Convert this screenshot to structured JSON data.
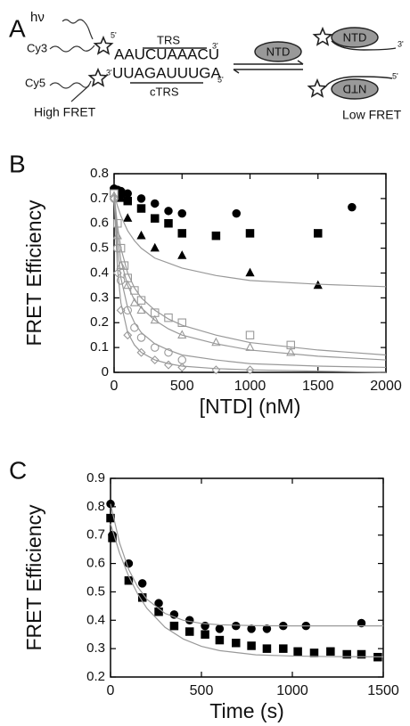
{
  "diagram": {
    "panel": "A",
    "hv": "hν",
    "cy3": "Cy3",
    "cy3_end": "5'",
    "top_end": "3'",
    "trs": "TRS",
    "top_strand": "AAUCUAAACU",
    "bottom_strand": "UUAGAUUUGA",
    "bottom_end": "5'",
    "ctrs": "cTRS",
    "cy5": "Cy5",
    "cy5_end": "3'",
    "high": "High FRET",
    "ntd_free": "NTD",
    "ntd_top": "NTD",
    "ntd_top_end": "3'",
    "ntd_bottom": "NTD",
    "ntd_bottom_end": "5'",
    "low": "Low FRET"
  },
  "chart_data": [
    {
      "type": "scatter",
      "panel": "B",
      "xlabel": "[NTD] (nM)",
      "ylabel": "FRET Efficiency",
      "xlim": [
        0,
        2000
      ],
      "ylim": [
        0,
        0.8
      ],
      "xticks": [
        0,
        500,
        1000,
        1500,
        2000
      ],
      "yticks": [
        0,
        0.1,
        0.2,
        0.3,
        0.4,
        0.5,
        0.6,
        0.7,
        0.8
      ],
      "series": [
        {
          "marker": "circle",
          "filled": true,
          "color": "#000000",
          "x": [
            0,
            25,
            50,
            100,
            200,
            300,
            400,
            500,
            900,
            1750
          ],
          "values": [
            0.74,
            0.735,
            0.73,
            0.72,
            0.7,
            0.68,
            0.65,
            0.64,
            0.64,
            0.665
          ]
        },
        {
          "marker": "square",
          "filled": true,
          "color": "#000000",
          "x": [
            0,
            50,
            100,
            200,
            300,
            400,
            500,
            750,
            1000,
            1500
          ],
          "values": [
            0.73,
            0.72,
            0.69,
            0.66,
            0.62,
            0.6,
            0.56,
            0.55,
            0.56,
            0.56
          ]
        },
        {
          "marker": "triangle",
          "filled": true,
          "color": "#000000",
          "x": [
            0,
            50,
            100,
            200,
            300,
            500,
            1000,
            1500
          ],
          "values": [
            0.72,
            0.7,
            0.62,
            0.55,
            0.5,
            0.47,
            0.4,
            0.35
          ]
        },
        {
          "marker": "square",
          "filled": false,
          "color": "#999999",
          "x": [
            0,
            25,
            50,
            75,
            100,
            150,
            200,
            300,
            400,
            500,
            1000,
            1300
          ],
          "values": [
            0.72,
            0.6,
            0.5,
            0.43,
            0.38,
            0.33,
            0.29,
            0.24,
            0.22,
            0.2,
            0.15,
            0.11
          ]
        },
        {
          "marker": "triangle",
          "filled": false,
          "color": "#999999",
          "x": [
            0,
            25,
            50,
            100,
            150,
            200,
            300,
            500,
            750,
            1000,
            1300
          ],
          "values": [
            0.71,
            0.55,
            0.43,
            0.35,
            0.28,
            0.25,
            0.21,
            0.15,
            0.12,
            0.1,
            0.08
          ]
        },
        {
          "marker": "circle",
          "filled": false,
          "color": "#999999",
          "x": [
            0,
            25,
            50,
            100,
            150,
            200,
            300,
            400,
            500
          ],
          "values": [
            0.7,
            0.5,
            0.37,
            0.25,
            0.18,
            0.14,
            0.1,
            0.08,
            0.05
          ]
        },
        {
          "marker": "diamond",
          "filled": false,
          "color": "#999999",
          "x": [
            0,
            25,
            50,
            100,
            200,
            300,
            400,
            500,
            750,
            1000
          ],
          "values": [
            0.7,
            0.4,
            0.25,
            0.15,
            0.08,
            0.05,
            0.03,
            0.02,
            0.01,
            0.01
          ]
        },
        {
          "marker": "line",
          "color": "#999999",
          "x": [
            0,
            25,
            50,
            100,
            150,
            200,
            300,
            400,
            500,
            750,
            1000,
            1500,
            2000
          ],
          "values": [
            0.72,
            0.67,
            0.63,
            0.57,
            0.53,
            0.5,
            0.46,
            0.44,
            0.42,
            0.39,
            0.37,
            0.355,
            0.345
          ]
        },
        {
          "marker": "line",
          "color": "#999999",
          "x": [
            0,
            25,
            50,
            100,
            150,
            200,
            300,
            400,
            500,
            750,
            1000,
            1500,
            2000
          ],
          "values": [
            0.72,
            0.59,
            0.5,
            0.4,
            0.34,
            0.3,
            0.25,
            0.215,
            0.19,
            0.15,
            0.12,
            0.09,
            0.07
          ]
        },
        {
          "marker": "line",
          "color": "#999999",
          "x": [
            0,
            25,
            50,
            100,
            150,
            200,
            300,
            400,
            500,
            750,
            1000,
            1500,
            2000
          ],
          "values": [
            0.71,
            0.55,
            0.45,
            0.35,
            0.29,
            0.26,
            0.21,
            0.175,
            0.15,
            0.115,
            0.09,
            0.065,
            0.05
          ]
        },
        {
          "marker": "line",
          "color": "#999999",
          "x": [
            0,
            25,
            50,
            100,
            150,
            200,
            300,
            400,
            500,
            750,
            1000,
            1500,
            2000
          ],
          "values": [
            0.7,
            0.5,
            0.38,
            0.26,
            0.2,
            0.16,
            0.115,
            0.09,
            0.07,
            0.05,
            0.035,
            0.025,
            0.02
          ]
        },
        {
          "marker": "line",
          "color": "#999999",
          "x": [
            0,
            25,
            50,
            100,
            150,
            200,
            300,
            400,
            500,
            750,
            1000,
            1500,
            2000
          ],
          "values": [
            0.7,
            0.42,
            0.28,
            0.16,
            0.11,
            0.08,
            0.05,
            0.035,
            0.025,
            0.015,
            0.01,
            0.005,
            0
          ]
        }
      ]
    },
    {
      "type": "scatter",
      "panel": "C",
      "xlabel": "Time (s)",
      "ylabel": "FRET Efficiency",
      "xlim": [
        0,
        1500
      ],
      "ylim": [
        0.2,
        0.9
      ],
      "xticks": [
        0,
        500,
        1000,
        1500
      ],
      "yticks": [
        0.2,
        0.3,
        0.4,
        0.5,
        0.6,
        0.7,
        0.8,
        0.9
      ],
      "series": [
        {
          "marker": "circle",
          "filled": true,
          "color": "#000000",
          "x": [
            0,
            10,
            100,
            175,
            265,
            350,
            435,
            520,
            600,
            690,
            775,
            860,
            950,
            1075,
            1380
          ],
          "values": [
            0.81,
            0.7,
            0.6,
            0.53,
            0.46,
            0.42,
            0.4,
            0.38,
            0.37,
            0.38,
            0.37,
            0.37,
            0.38,
            0.38,
            0.39
          ]
        },
        {
          "marker": "square",
          "filled": true,
          "color": "#000000",
          "x": [
            0,
            10,
            100,
            175,
            265,
            350,
            435,
            520,
            600,
            690,
            775,
            860,
            950,
            1030,
            1120,
            1210,
            1300,
            1380,
            1470
          ],
          "values": [
            0.76,
            0.69,
            0.54,
            0.48,
            0.43,
            0.38,
            0.36,
            0.35,
            0.33,
            0.32,
            0.31,
            0.3,
            0.3,
            0.29,
            0.285,
            0.29,
            0.28,
            0.28,
            0.27
          ]
        },
        {
          "marker": "line",
          "color": "#999999",
          "x": [
            0,
            50,
            100,
            150,
            200,
            300,
            400,
            500,
            600,
            800,
            1000,
            1200,
            1500
          ],
          "values": [
            0.81,
            0.672,
            0.579,
            0.517,
            0.474,
            0.424,
            0.4,
            0.389,
            0.384,
            0.381,
            0.38,
            0.38,
            0.38
          ]
        },
        {
          "marker": "line",
          "color": "#999999",
          "x": [
            0,
            50,
            100,
            150,
            200,
            300,
            400,
            500,
            600,
            800,
            1000,
            1200,
            1500
          ],
          "values": [
            0.74,
            0.636,
            0.555,
            0.492,
            0.442,
            0.375,
            0.334,
            0.308,
            0.293,
            0.278,
            0.274,
            0.272,
            0.271
          ]
        }
      ]
    }
  ]
}
